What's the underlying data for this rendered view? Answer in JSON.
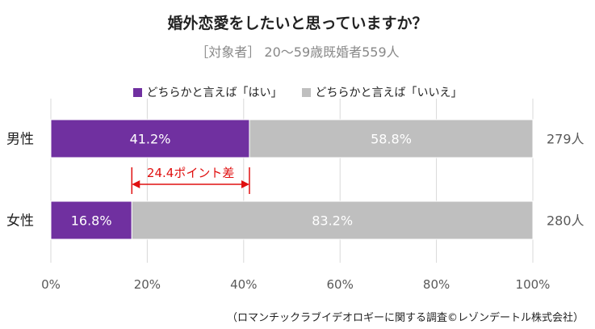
{
  "title": "婚外恋愛をしたいと思っていますか？",
  "subtitle": "［対象者］ 20～59歳既婚者559人",
  "colors": {
    "yes": "#7030a0",
    "no": "#bfbfbf",
    "callout": "#e01010",
    "grid": "#d9d9d9"
  },
  "legend": [
    {
      "label": "どちらかと言えば「はい」",
      "color": "#7030a0"
    },
    {
      "label": "どちらかと言えば「いいえ」",
      "color": "#bfbfbf"
    }
  ],
  "callout": {
    "label": "24.4ポイント差"
  },
  "footnote": "（ロマンチックラブイデオロギーに関する調査©レゾンデートル株式会社）",
  "chart_data": {
    "type": "bar",
    "orientation": "horizontal",
    "stacked": true,
    "percent": true,
    "title": "婚外恋愛をしたいと思っていますか？",
    "subtitle": "［対象者］ 20～59歳既婚者559人",
    "categories": [
      "男性",
      "女性"
    ],
    "series": [
      {
        "name": "どちらかと言えば「はい」",
        "values": [
          41.2,
          16.8
        ],
        "labels": [
          "41.2%",
          "16.8%"
        ],
        "color": "#7030a0"
      },
      {
        "name": "どちらかと言えば「いいえ」",
        "values": [
          58.8,
          83.2
        ],
        "labels": [
          "58.8%",
          "83.2%"
        ],
        "color": "#bfbfbf"
      }
    ],
    "totals": [
      "279人",
      "280人"
    ],
    "xlim": [
      0,
      100
    ],
    "xticks": [
      0,
      20,
      40,
      60,
      80,
      100
    ],
    "xtick_labels": [
      "0%",
      "20%",
      "40%",
      "60%",
      "80%",
      "100%"
    ],
    "grid": "vertical",
    "legend_position": "top"
  }
}
